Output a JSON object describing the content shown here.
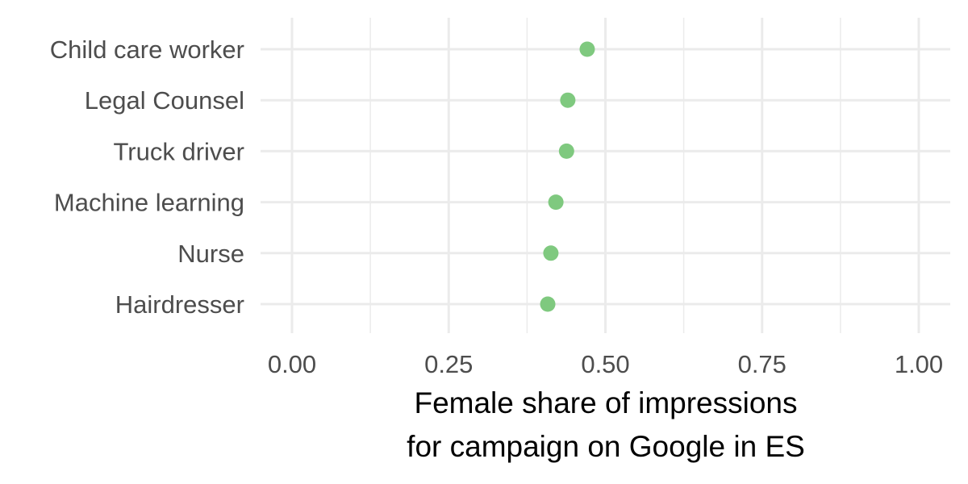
{
  "chart_data": {
    "type": "scatter",
    "categories": [
      "Hairdresser",
      "Nurse",
      "Machine learning",
      "Truck driver",
      "Legal Counsel",
      "Child care worker"
    ],
    "series": [
      {
        "values": [
          0.408,
          0.413,
          0.421,
          0.438,
          0.44,
          0.471
        ]
      }
    ],
    "xlabel": [
      "Female share of impressions",
      "for campaign on Google in ES"
    ],
    "ylabel": "",
    "xlim": [
      0,
      1
    ],
    "xticks": [
      0.0,
      0.25,
      0.5,
      0.75,
      1.0
    ],
    "xtick_labels": [
      "0.00",
      "0.25",
      "0.50",
      "0.75",
      "1.00"
    ],
    "grid": true,
    "colors": {
      "point": "#7fc97f",
      "grid": "#ebebeb",
      "tick_text": "#4d4d4d"
    }
  }
}
